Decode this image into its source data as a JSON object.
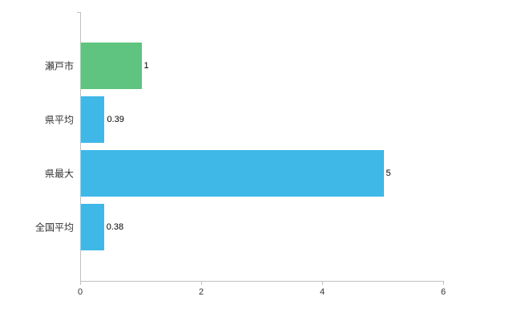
{
  "chart_data": {
    "type": "bar",
    "orientation": "horizontal",
    "title": "",
    "xlabel": "",
    "ylabel": "",
    "categories": [
      "瀬戸市",
      "県平均",
      "県最大",
      "全国平均"
    ],
    "values": [
      1,
      0.39,
      5,
      0.38
    ],
    "value_labels": [
      "1",
      "0.39",
      "5",
      "0.38"
    ],
    "bar_colors": [
      "#5ec47f",
      "#3fb8e8",
      "#3fb8e8",
      "#3fb8e8"
    ],
    "xlim": [
      0,
      6
    ],
    "x_ticks": [
      0,
      2,
      4,
      6
    ],
    "x_tick_labels": [
      "0",
      "2",
      "4",
      "6"
    ],
    "grid": false,
    "legend": null
  },
  "colors": {
    "axis": "#c0c0c0",
    "text": "#333333",
    "value_text": "#000000",
    "background": "#ffffff"
  }
}
